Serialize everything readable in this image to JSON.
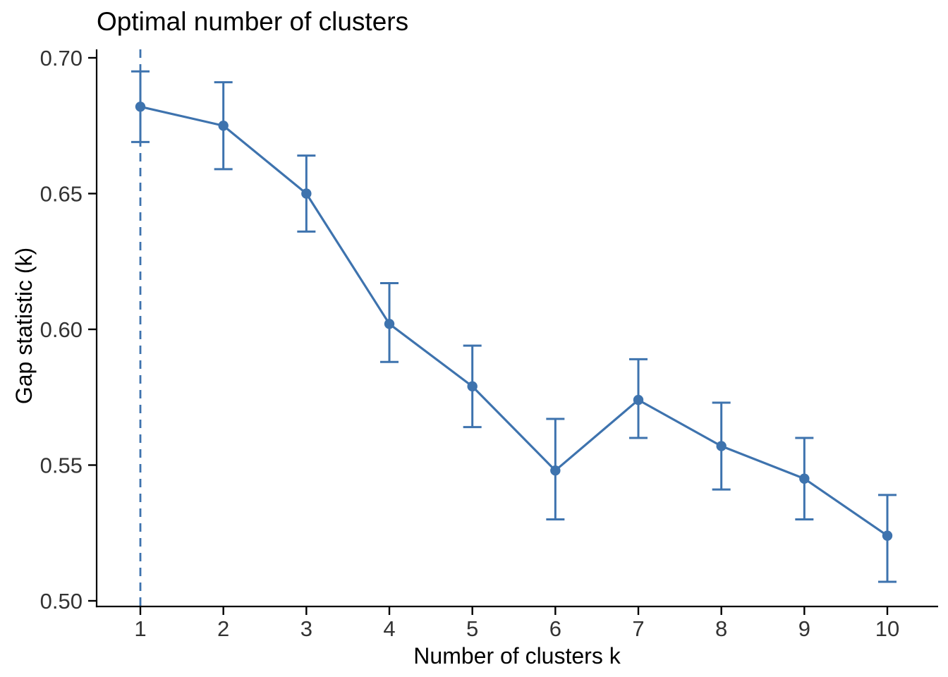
{
  "chart_data": {
    "type": "line",
    "title": "Optimal number of clusters",
    "xlabel": "Number of clusters k",
    "ylabel": "Gap statistic (k)",
    "x": [
      1,
      2,
      3,
      4,
      5,
      6,
      7,
      8,
      9,
      10
    ],
    "series": [
      {
        "name": "Gap statistic",
        "values": [
          0.682,
          0.675,
          0.65,
          0.602,
          0.579,
          0.548,
          0.574,
          0.557,
          0.545,
          0.524
        ],
        "error_low": [
          0.669,
          0.659,
          0.636,
          0.588,
          0.564,
          0.53,
          0.56,
          0.541,
          0.53,
          0.507
        ],
        "error_high": [
          0.695,
          0.691,
          0.664,
          0.617,
          0.594,
          0.567,
          0.589,
          0.573,
          0.56,
          0.539
        ]
      }
    ],
    "x_ticks": [
      "1",
      "2",
      "3",
      "4",
      "5",
      "6",
      "7",
      "8",
      "9",
      "10"
    ],
    "y_ticks": [
      0.5,
      0.55,
      0.6,
      0.65,
      0.7
    ],
    "ylim": [
      0.498,
      0.703
    ],
    "xlim": [
      0.47,
      10.6
    ],
    "grid": false,
    "legend_position": "none",
    "vline": {
      "x": 1,
      "style": "dashed",
      "meaning": "optimal number of clusters"
    },
    "marker": "filled-circle",
    "colors": {
      "series": "#3e73ae",
      "axis": "#000000",
      "tick_label": "#333333",
      "title": "#000000",
      "background": "#ffffff"
    }
  }
}
